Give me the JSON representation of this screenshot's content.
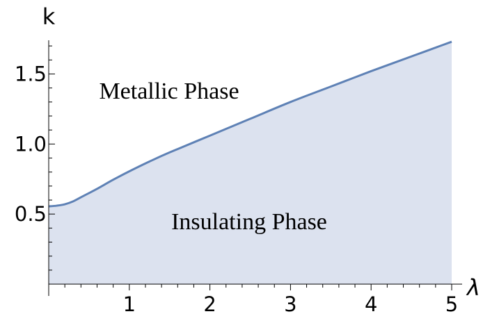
{
  "chart_data": {
    "type": "area",
    "xlabel": "λ",
    "ylabel": "k",
    "xlim": [
      0,
      5
    ],
    "ylim": [
      0,
      1.78
    ],
    "x_ticks": [
      1,
      2,
      3,
      4,
      5
    ],
    "x_tick_labels": [
      "1",
      "2",
      "3",
      "4",
      "5"
    ],
    "y_ticks": [
      0.5,
      1.0,
      1.5
    ],
    "y_tick_labels": [
      "0.5",
      "1.0",
      "1.5"
    ],
    "grid": false,
    "colors": {
      "line": "#5e81b5",
      "fill": "#dce2ef"
    },
    "annotations": [
      {
        "text": "Metallic Phase",
        "region": "above curve"
      },
      {
        "text": "Insulating Phase",
        "region": "below curve"
      }
    ],
    "series": [
      {
        "x": [
          0,
          0.1,
          0.2,
          0.3,
          0.4,
          0.5,
          0.6,
          0.8,
          1.0,
          1.25,
          1.5,
          2.0,
          2.5,
          3.0,
          3.5,
          4.0,
          4.5,
          5.0
        ],
        "values": [
          0.555,
          0.56,
          0.57,
          0.59,
          0.62,
          0.65,
          0.68,
          0.745,
          0.805,
          0.875,
          0.94,
          1.06,
          1.18,
          1.3,
          1.41,
          1.52,
          1.625,
          1.73
        ]
      }
    ]
  }
}
